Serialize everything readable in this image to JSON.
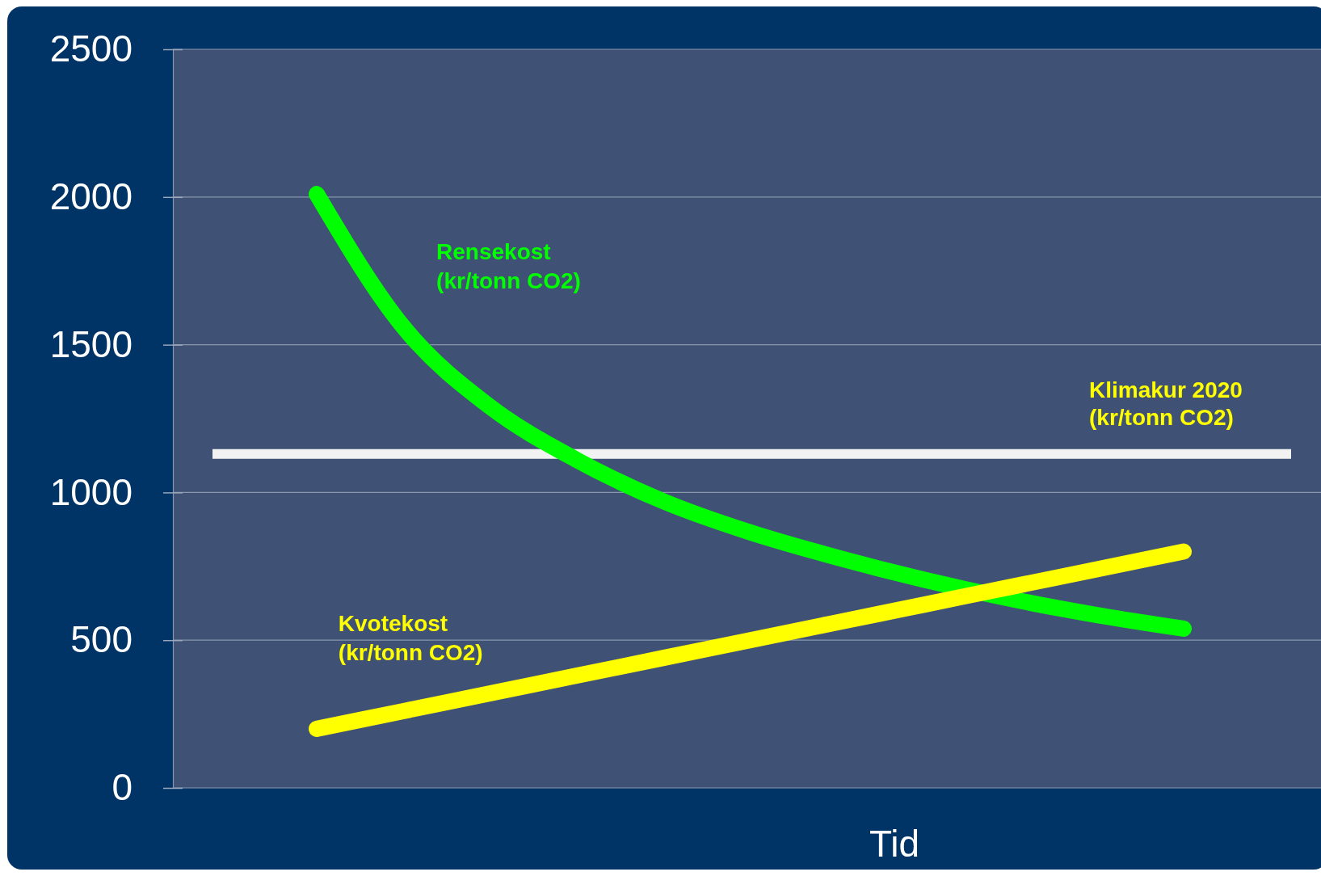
{
  "chart_data": {
    "type": "line",
    "xlabel": "Tid",
    "categories": [
      null,
      null,
      null,
      null,
      null,
      null,
      null,
      null,
      null,
      null,
      null
    ],
    "series": [
      {
        "name": "Rensekost (kr/tonn CO2)",
        "color": "#00ff00",
        "values": [
          2010,
          1560,
          1290,
          1110,
          970,
          865,
          780,
          705,
          640,
          585,
          539
        ]
      },
      {
        "name": "Kvotekost (kr/tonn CO2)",
        "color": "#ffff00",
        "values": [
          200,
          260,
          320,
          380,
          440,
          500,
          560,
          620,
          680,
          740,
          800
        ]
      }
    ],
    "ref_lines": [
      {
        "axis": "y",
        "value": 1130,
        "label": "Klimakur 2020 (kr/tonn CO2)",
        "color": "#f2f2f2"
      }
    ],
    "ylim": [
      0,
      2500
    ],
    "yticks": [
      0,
      500,
      1000,
      1500,
      2000,
      2500
    ],
    "grid": "y",
    "marker": "none",
    "line_style": "solid"
  }
}
